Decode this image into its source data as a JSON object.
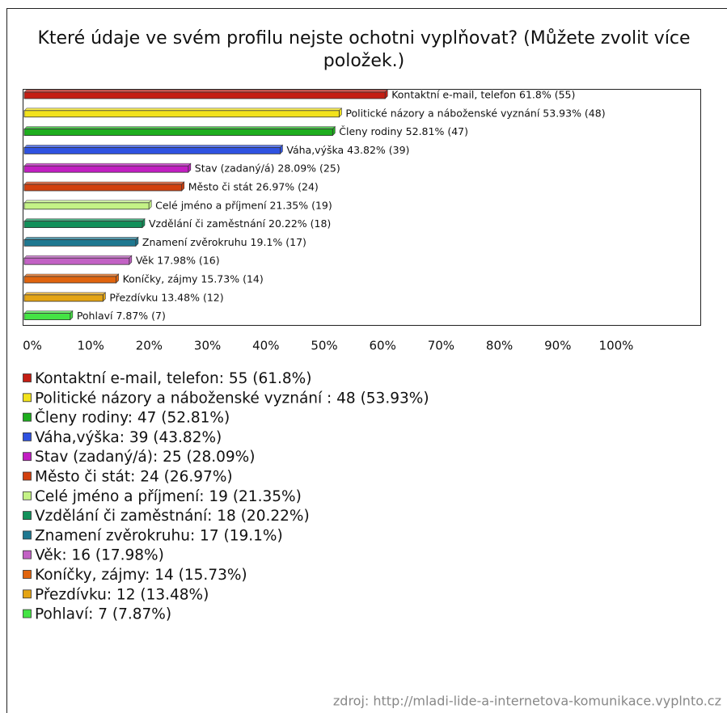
{
  "chart_data": {
    "type": "bar",
    "orientation": "horizontal",
    "title": "Které údaje ve svém profilu nejste ochotni vyplňovat? (Můžete zvolit více položek.)",
    "values": [
      61.8,
      53.93,
      52.81,
      43.82,
      28.09,
      26.97,
      21.35,
      20.22,
      19.1,
      17.98,
      15.73,
      13.48,
      7.87
    ],
    "value_labels": [
      "Kontaktní e-mail, telefon 61.8% (55)",
      "Politické názory a náboženské vyznání  53.93% (48)",
      "Členy rodiny 52.81% (47)",
      "Váha,výška 43.82% (39)",
      "Stav (zadaný/á) 28.09% (25)",
      "Město či stát 26.97% (24)",
      "Celé jméno a příjmení 21.35% (19)",
      "Vzdělání či zaměstnání 20.22% (18)",
      "Znamení zvěrokruhu 19.1% (17)",
      "Věk 17.98% (16)",
      "Koníčky, zájmy 15.73% (14)",
      "Přezdívku 13.48% (12)",
      "Pohlaví 7.87% (7)"
    ],
    "legend_labels": [
      "Kontaktní e-mail, telefon: 55 (61.8%)",
      "Politické názory a náboženské vyznání : 48 (53.93%)",
      "Členy rodiny: 47 (52.81%)",
      "Váha,výška: 39 (43.82%)",
      "Stav (zadaný/á): 25 (28.09%)",
      "Město či stát: 24 (26.97%)",
      "Celé jméno a příjmení: 19 (21.35%)",
      "Vzdělání či zaměstnání: 18 (20.22%)",
      "Znamení zvěrokruhu: 17 (19.1%)",
      "Věk: 16 (17.98%)",
      "Koníčky, zájmy: 14 (15.73%)",
      "Přezdívku: 12 (13.48%)",
      "Pohlaví: 7 (7.87%)"
    ],
    "colors": [
      "#c41e14",
      "#f2e21c",
      "#1eae1e",
      "#2f52e0",
      "#c21ec2",
      "#d2400e",
      "#c4f286",
      "#12905a",
      "#1f7890",
      "#c262c4",
      "#e0640e",
      "#e4a414",
      "#44e444"
    ],
    "xlim": [
      0,
      100
    ],
    "xticks": [
      {
        "value": 0,
        "label": "0%"
      },
      {
        "value": 10,
        "label": "10%"
      },
      {
        "value": 20,
        "label": "20%"
      },
      {
        "value": 30,
        "label": "30%"
      },
      {
        "value": 40,
        "label": "40%"
      },
      {
        "value": 50,
        "label": "50%"
      },
      {
        "value": 60,
        "label": "60%"
      },
      {
        "value": 70,
        "label": "70%"
      },
      {
        "value": 80,
        "label": "80%"
      },
      {
        "value": 90,
        "label": "90%"
      },
      {
        "value": 100,
        "label": "100%"
      }
    ],
    "source": "zdroj: http://mladi-lide-a-internetova-komunikace.vyplnto.cz"
  }
}
